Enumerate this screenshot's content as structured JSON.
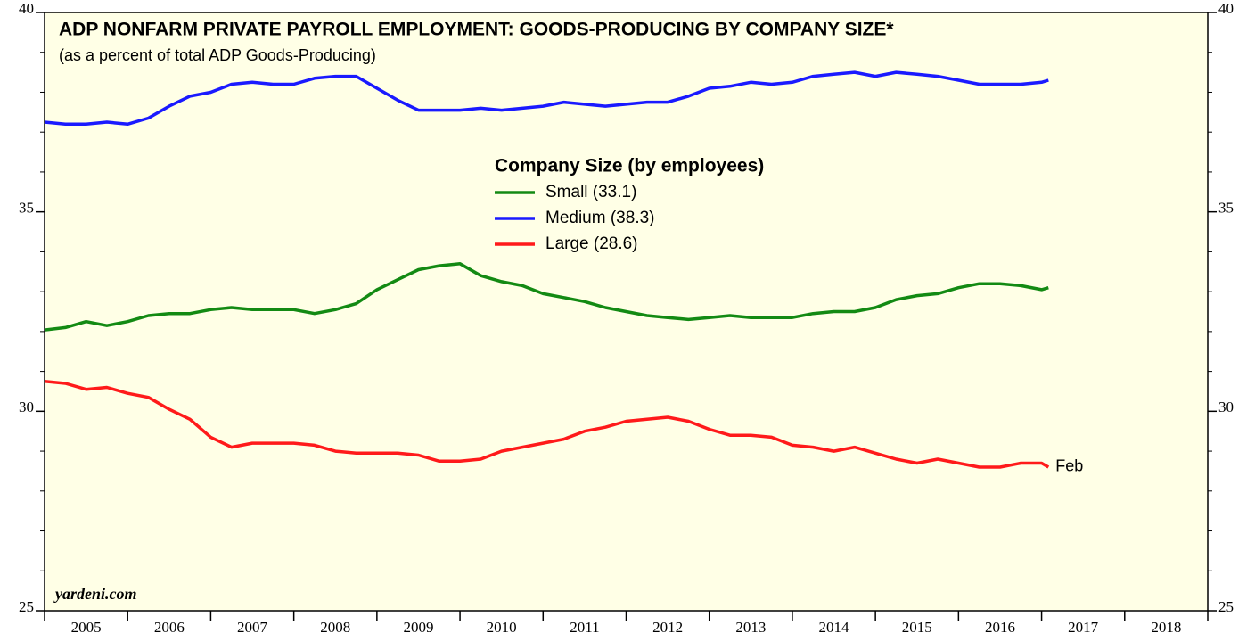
{
  "chart_data": {
    "type": "line",
    "title": "ADP NONFARM PRIVATE PAYROLL EMPLOYMENT: GOODS-PRODUCING BY COMPANY SIZE*",
    "subtitle": "(as a percent of total ADP Goods-Producing)",
    "legend_title": "Company Size (by employees)",
    "annotation": "Feb",
    "watermark": "yardeni.com",
    "x": [
      2005.0,
      2005.25,
      2005.5,
      2005.75,
      2006.0,
      2006.25,
      2006.5,
      2006.75,
      2007.0,
      2007.25,
      2007.5,
      2007.75,
      2008.0,
      2008.25,
      2008.5,
      2008.75,
      2009.0,
      2009.25,
      2009.5,
      2009.75,
      2010.0,
      2010.25,
      2010.5,
      2010.75,
      2011.0,
      2011.25,
      2011.5,
      2011.75,
      2012.0,
      2012.25,
      2012.5,
      2012.75,
      2013.0,
      2013.25,
      2013.5,
      2013.75,
      2014.0,
      2014.25,
      2014.5,
      2014.75,
      2015.0,
      2015.25,
      2015.5,
      2015.75,
      2016.0,
      2016.25,
      2016.5,
      2016.75,
      2017.0,
      2017.083
    ],
    "series": [
      {
        "name": "Small (33.1)",
        "color": "#138a13",
        "values": [
          32.04,
          32.1,
          32.25,
          32.15,
          32.25,
          32.4,
          32.45,
          32.45,
          32.55,
          32.6,
          32.55,
          32.55,
          32.55,
          32.45,
          32.55,
          32.7,
          33.05,
          33.3,
          33.55,
          33.65,
          33.7,
          33.4,
          33.25,
          33.15,
          32.95,
          32.85,
          32.75,
          32.6,
          32.5,
          32.4,
          32.35,
          32.3,
          32.35,
          32.4,
          32.35,
          32.35,
          32.35,
          32.45,
          32.5,
          32.5,
          32.6,
          32.8,
          32.9,
          32.95,
          33.1,
          33.2,
          33.2,
          33.15,
          33.05,
          33.1
        ]
      },
      {
        "name": "Medium (38.3)",
        "color": "#1a1aff",
        "values": [
          37.25,
          37.2,
          37.2,
          37.25,
          37.2,
          37.35,
          37.65,
          37.9,
          38.0,
          38.2,
          38.25,
          38.2,
          38.2,
          38.35,
          38.4,
          38.4,
          38.1,
          37.8,
          37.55,
          37.55,
          37.55,
          37.6,
          37.55,
          37.6,
          37.65,
          37.75,
          37.7,
          37.65,
          37.7,
          37.75,
          37.75,
          37.9,
          38.1,
          38.15,
          38.25,
          38.2,
          38.25,
          38.4,
          38.45,
          38.5,
          38.4,
          38.5,
          38.45,
          38.4,
          38.3,
          38.2,
          38.2,
          38.2,
          38.25,
          38.3
        ]
      },
      {
        "name": "Large (28.6)",
        "color": "#ff1a1a",
        "values": [
          30.75,
          30.7,
          30.55,
          30.6,
          30.45,
          30.35,
          30.05,
          29.8,
          29.35,
          29.1,
          29.2,
          29.2,
          29.2,
          29.15,
          29.0,
          28.95,
          28.95,
          28.95,
          28.9,
          28.75,
          28.75,
          28.8,
          29.0,
          29.1,
          29.2,
          29.3,
          29.5,
          29.6,
          29.75,
          29.8,
          29.85,
          29.75,
          29.55,
          29.4,
          29.4,
          29.35,
          29.15,
          29.1,
          29.0,
          29.1,
          28.95,
          28.8,
          28.7,
          28.8,
          28.7,
          28.6,
          28.6,
          28.7,
          28.7,
          28.6
        ]
      }
    ],
    "xlim": [
      2005,
      2019
    ],
    "xboundaries": [
      2005,
      2006,
      2007,
      2008,
      2009,
      2010,
      2011,
      2012,
      2013,
      2014,
      2015,
      2016,
      2017,
      2018,
      2019
    ],
    "xticks": [
      {
        "value": 2005.5,
        "label": "2005"
      },
      {
        "value": 2006.5,
        "label": "2006"
      },
      {
        "value": 2007.5,
        "label": "2007"
      },
      {
        "value": 2008.5,
        "label": "2008"
      },
      {
        "value": 2009.5,
        "label": "2009"
      },
      {
        "value": 2010.5,
        "label": "2010"
      },
      {
        "value": 2011.5,
        "label": "2011"
      },
      {
        "value": 2012.5,
        "label": "2012"
      },
      {
        "value": 2013.5,
        "label": "2013"
      },
      {
        "value": 2014.5,
        "label": "2014"
      },
      {
        "value": 2015.5,
        "label": "2015"
      },
      {
        "value": 2016.5,
        "label": "2016"
      },
      {
        "value": 2017.5,
        "label": "2017"
      },
      {
        "value": 2018.5,
        "label": "2018"
      }
    ],
    "ylim": [
      25,
      40
    ],
    "yticks": [
      25,
      30,
      35,
      40
    ],
    "yminorticks": [
      26,
      27,
      28,
      29,
      31,
      32,
      33,
      34,
      36,
      37,
      38,
      39
    ],
    "grid": false
  }
}
